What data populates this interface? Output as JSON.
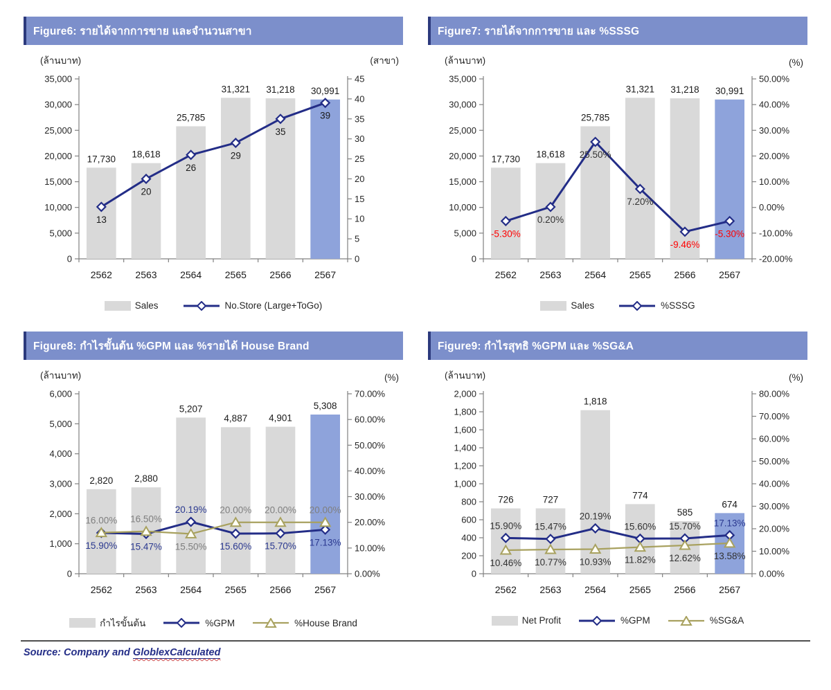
{
  "page": {
    "source": {
      "prefix": "Source: Company and ",
      "underlined": "GloblexCalculated"
    }
  },
  "colors": {
    "header_bg": "#7C8FCB",
    "header_accent": "#2C3A7D",
    "bar_gray": "#D9D9D9",
    "bar_highlight": "#8EA3DB",
    "line_navy": "#232D87",
    "line_olive": "#A8A15F",
    "negative_label": "#FF0000",
    "axis": "#808080",
    "tick_text": "#262626",
    "label_text": "#1A1A1A"
  },
  "chart_data": [
    {
      "id": "figure6",
      "type": "bar+line",
      "title": "Figure6: รายได้จากการขาย และจำนวนสาขา",
      "left_unit": "(ล้านบาท)",
      "right_unit": "(สาขา)",
      "categories": [
        "2562",
        "2563",
        "2564",
        "2565",
        "2566",
        "2567"
      ],
      "left_axis": {
        "min": 0,
        "max": 35000,
        "ticks": [
          "0",
          "5,000",
          "10,000",
          "15,000",
          "20,000",
          "25,000",
          "30,000",
          "35,000"
        ]
      },
      "right_axis": {
        "min": 0,
        "max": 45,
        "ticks": [
          "0",
          "5",
          "10",
          "15",
          "20",
          "25",
          "30",
          "35",
          "40",
          "45"
        ]
      },
      "bars": {
        "name": "Sales",
        "values": [
          17730,
          18618,
          25785,
          31321,
          31218,
          30991
        ],
        "labels": [
          "17,730",
          "18,618",
          "25,785",
          "31,321",
          "31,218",
          "30,991"
        ],
        "highlight_last": true
      },
      "lines": [
        {
          "name": "No.Store (Large+ToGo)",
          "marker": "diamond",
          "color": "navy",
          "values": [
            13,
            20,
            26,
            29,
            35,
            39
          ],
          "labels": [
            "13",
            "20",
            "26",
            "29",
            "35",
            "39"
          ],
          "label_side": [
            "below",
            "below",
            "below",
            "below",
            "below",
            "below"
          ],
          "label_colors": [
            "#1A1A1A",
            "#1A1A1A",
            "#1A1A1A",
            "#1A1A1A",
            "#1A1A1A",
            "#1A1A1A"
          ]
        }
      ],
      "legend": [
        {
          "swatch": "bar",
          "label": "Sales"
        },
        {
          "swatch": "line-diamond",
          "label": "No.Store (Large+ToGo)"
        }
      ]
    },
    {
      "id": "figure7",
      "type": "bar+line",
      "title": "Figure7: รายได้จากการขาย และ %SSSG",
      "left_unit": "(ล้านบาท)",
      "right_unit": "(%)",
      "categories": [
        "2562",
        "2563",
        "2564",
        "2565",
        "2566",
        "2567"
      ],
      "left_axis": {
        "min": 0,
        "max": 35000,
        "ticks": [
          "0",
          "5,000",
          "10,000",
          "15,000",
          "20,000",
          "25,000",
          "30,000",
          "35,000"
        ]
      },
      "right_axis": {
        "min": -20,
        "max": 50,
        "ticks": [
          "-20.00%",
          "-10.00%",
          "0.00%",
          "10.00%",
          "20.00%",
          "30.00%",
          "40.00%",
          "50.00%"
        ]
      },
      "bars": {
        "name": "Sales",
        "values": [
          17730,
          18618,
          25785,
          31321,
          31218,
          30991
        ],
        "labels": [
          "17,730",
          "18,618",
          "25,785",
          "31,321",
          "31,218",
          "30,991"
        ],
        "highlight_last": true
      },
      "lines": [
        {
          "name": "%SSSG",
          "marker": "diamond",
          "color": "navy",
          "values": [
            -5.3,
            0.2,
            25.5,
            7.2,
            -9.46,
            -5.3
          ],
          "labels": [
            "-5.30%",
            "0.20%",
            "25.50%",
            "7.20%",
            "-9.46%",
            "-5.30%"
          ],
          "label_side": [
            "below",
            "below",
            "below",
            "below",
            "below",
            "below"
          ],
          "label_colors": [
            "#FF0000",
            "#333333",
            "#333333",
            "#333333",
            "#FF0000",
            "#FF0000"
          ]
        }
      ],
      "legend": [
        {
          "swatch": "bar",
          "label": "Sales"
        },
        {
          "swatch": "line-diamond",
          "label": "%SSSG"
        }
      ]
    },
    {
      "id": "figure8",
      "type": "bar+line",
      "title": "Figure8: กำไรขั้นต้น %GPM และ %รายได้ House Brand",
      "left_unit": "(ล้านบาท)",
      "right_unit": "(%)",
      "categories": [
        "2562",
        "2563",
        "2564",
        "2565",
        "2566",
        "2567"
      ],
      "left_axis": {
        "min": 0,
        "max": 6000,
        "ticks": [
          "0",
          "1,000",
          "2,000",
          "3,000",
          "4,000",
          "5,000",
          "6,000"
        ]
      },
      "right_axis": {
        "min": 0,
        "max": 70,
        "ticks": [
          "0.00%",
          "10.00%",
          "20.00%",
          "30.00%",
          "40.00%",
          "50.00%",
          "60.00%",
          "70.00%"
        ]
      },
      "bars": {
        "name": "กำไรขั้นต้น",
        "values": [
          2820,
          2880,
          5207,
          4887,
          4901,
          5308
        ],
        "labels": [
          "2,820",
          "2,880",
          "5,207",
          "4,887",
          "4,901",
          "5,308"
        ],
        "highlight_last": true
      },
      "lines": [
        {
          "name": "%GPM",
          "marker": "diamond",
          "color": "navy",
          "values": [
            15.9,
            15.47,
            20.19,
            15.6,
            15.7,
            17.13
          ],
          "labels": [
            "15.90%",
            "15.47%",
            "20.19%",
            "15.60%",
            "15.70%",
            "17.13%"
          ],
          "label_side": [
            "below",
            "below",
            "above",
            "below",
            "below",
            "below"
          ],
          "label_colors": [
            "#2B3990",
            "#2B3990",
            "#2B3990",
            "#2B3990",
            "#2B3990",
            "#2B3990"
          ]
        },
        {
          "name": "%House Brand",
          "marker": "triangle",
          "color": "olive",
          "values": [
            16.0,
            16.5,
            15.5,
            20.0,
            20.0,
            20.0
          ],
          "labels": [
            "16.00%",
            "16.50%",
            "15.50%",
            "20.00%",
            "20.00%",
            "20.00%"
          ],
          "label_side": [
            "above",
            "above",
            "below",
            "above",
            "above",
            "above"
          ],
          "label_colors": [
            "#7F7F7F",
            "#7F7F7F",
            "#7F7F7F",
            "#7F7F7F",
            "#7F7F7F",
            "#7F7F7F"
          ]
        }
      ],
      "legend": [
        {
          "swatch": "bar",
          "label": "กำไรขั้นต้น"
        },
        {
          "swatch": "line-diamond",
          "label": "%GPM"
        },
        {
          "swatch": "line-triangle",
          "label": "%House Brand"
        }
      ]
    },
    {
      "id": "figure9",
      "type": "bar+line",
      "title": "Figure9: กำไรสุทธิ %GPM และ %SG&A",
      "left_unit": "(ล้านบาท)",
      "right_unit": "(%)",
      "categories": [
        "2562",
        "2563",
        "2564",
        "2565",
        "2566",
        "2567"
      ],
      "left_axis": {
        "min": 0,
        "max": 2000,
        "ticks": [
          "0",
          "200",
          "400",
          "600",
          "800",
          "1,000",
          "1,200",
          "1,400",
          "1,600",
          "1,800",
          "2,000"
        ]
      },
      "right_axis": {
        "min": 0,
        "max": 80,
        "ticks": [
          "0.00%",
          "10.00%",
          "20.00%",
          "30.00%",
          "40.00%",
          "50.00%",
          "60.00%",
          "70.00%",
          "80.00%"
        ]
      },
      "bars": {
        "name": "Net Profit",
        "values": [
          726,
          727,
          1818,
          774,
          585,
          674
        ],
        "labels": [
          "726",
          "727",
          "1,818",
          "774",
          "585",
          "674"
        ],
        "highlight_last": true
      },
      "lines": [
        {
          "name": "%GPM",
          "marker": "diamond",
          "color": "navy",
          "values": [
            15.9,
            15.47,
            20.19,
            15.6,
            15.7,
            17.13
          ],
          "labels": [
            "15.90%",
            "15.47%",
            "20.19%",
            "15.60%",
            "15.70%",
            "17.13%"
          ],
          "label_side": [
            "above",
            "above",
            "above",
            "above",
            "above",
            "above"
          ],
          "label_colors": [
            "#333333",
            "#333333",
            "#333333",
            "#333333",
            "#333333",
            "#2B3990"
          ]
        },
        {
          "name": "%SG&A",
          "marker": "triangle",
          "color": "olive",
          "values": [
            10.46,
            10.77,
            10.93,
            11.82,
            12.62,
            13.58
          ],
          "labels": [
            "10.46%",
            "10.77%",
            "10.93%",
            "11.82%",
            "12.62%",
            "13.58%"
          ],
          "label_side": [
            "below",
            "below",
            "below",
            "below",
            "below",
            "below"
          ],
          "label_colors": [
            "#333333",
            "#333333",
            "#333333",
            "#333333",
            "#333333",
            "#333333"
          ]
        }
      ],
      "legend": [
        {
          "swatch": "bar",
          "label": "Net Profit"
        },
        {
          "swatch": "line-diamond",
          "label": "%GPM"
        },
        {
          "swatch": "line-triangle",
          "label": "%SG&A"
        }
      ]
    }
  ]
}
